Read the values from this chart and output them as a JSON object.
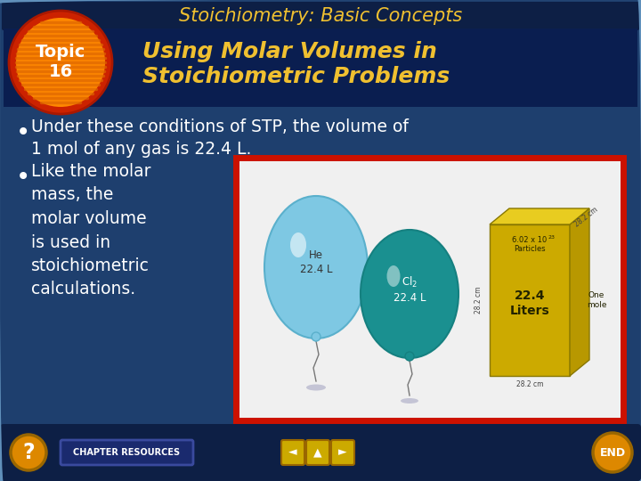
{
  "title": "Stoichiometry: Basic Concepts",
  "subtitle": "Using Molar Volumes in\nStoichiometric Problems",
  "topic_label": "Topic\n16",
  "bullet1": "Under these conditions of STP, the volume of\n1 mol of any gas is 22.4 L.",
  "bullet2": "Like the molar\nmass, the\nmolar volume\nis used in\nstoichiometric\ncalculations.",
  "bg_color": "#1e3f6e",
  "header_bg": "#0d1f45",
  "subtitle_bg": "#0a1e50",
  "title_color": "#f0c030",
  "subtitle_color": "#f0c030",
  "text_color": "#ffffff",
  "topic_circle_outer": "#cc2200",
  "topic_circle_inner": "#ff8800",
  "slide_border_outer": "#5580aa",
  "slide_border_inner": "#3a5a88",
  "image_border": "#cc1100",
  "image_bg": "#f0f0f0",
  "balloon_he_color": "#7ec8e3",
  "balloon_cl2_color": "#1a9090",
  "box_color": "#ccaa00",
  "box_side_color": "#b89800",
  "footer_bg": "#0d1f45",
  "nav_circle_color": "#dd8800",
  "chapter_res_bg": "#1a2a6e",
  "chapter_res_border": "#3a4a9e"
}
